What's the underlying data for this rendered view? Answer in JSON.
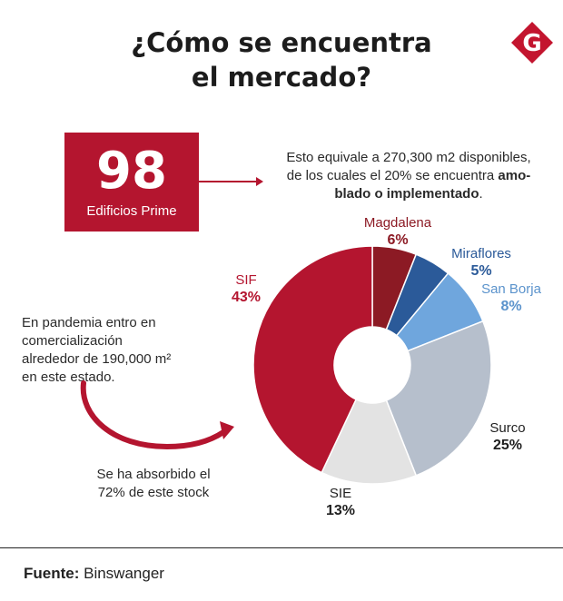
{
  "header": {
    "title_line1": "¿Cómo se encuentra",
    "title_line2": "el mercado?",
    "logo_letter": "G"
  },
  "stat": {
    "number": "98",
    "label": "Edificios Prime"
  },
  "info": {
    "text_line1": "Esto equivale a 270,300 m2 disponibles,",
    "text_line2_plain": "de los cuales el 20% se encuentra ",
    "text_line2_bold": "amo-",
    "text_line3_bold": "blado o implementado",
    "text_line3_end": "."
  },
  "notes": {
    "left_line1": "En pandemia entro en",
    "left_line2": "comercialización",
    "left_line3": "alrededor de 190,000 m²",
    "left_line4": "en este estado.",
    "bottom_line1": "Se ha absorbido el",
    "bottom_line2": "72% de este stock"
  },
  "footer": {
    "source_label": "Fuente:",
    "source_value": " Binswanger"
  },
  "colors": {
    "brand_red": "#b4152f",
    "logo_red": "#c3152f"
  },
  "chart_data": {
    "type": "pie",
    "donut": true,
    "slices": [
      {
        "name": "Magdalena",
        "label": "6%",
        "value": 6,
        "color": "#8c1a24",
        "label_color": "#8c1a24"
      },
      {
        "name": "Miraflores",
        "label": "5%",
        "value": 5,
        "color": "#2b5a99",
        "label_color": "#2b5a99"
      },
      {
        "name": "San Borja",
        "label": "8%",
        "value": 8,
        "color": "#6fa6dd",
        "label_color": "#5b93cc"
      },
      {
        "name": "Surco",
        "label": "25%",
        "value": 25,
        "color": "#b6bfcc",
        "label_color": "#1f1f1f"
      },
      {
        "name": "SIE",
        "label": "13%",
        "value": 13,
        "color": "#e3e3e3",
        "label_color": "#1f1f1f"
      },
      {
        "name": "SIF",
        "label": "43%",
        "value": 43,
        "color": "#b4152f",
        "label_color": "#b4152f"
      }
    ]
  }
}
